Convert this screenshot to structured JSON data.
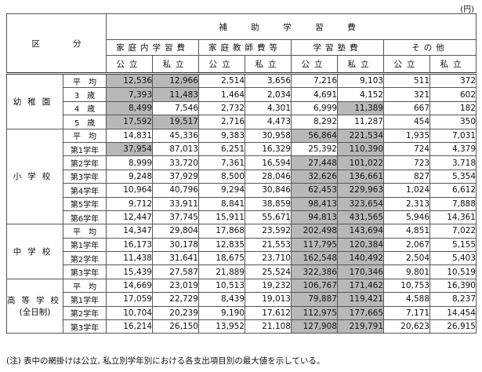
{
  "unit": "(円)",
  "header": {
    "division": "区　　　　分",
    "main": "補　助　学　習　費",
    "groups": [
      "家庭内学習費",
      "家庭教師費等",
      "学習塾費",
      "その他"
    ],
    "sub": [
      "公立",
      "私立",
      "公立",
      "私立",
      "公立",
      "私立",
      "公立",
      "私立"
    ]
  },
  "table": {
    "sections": [
      {
        "name": "幼稚園",
        "rows": [
          {
            "label": "平　均",
            "cells": [
              "12,536",
              "12,966",
              "2,514",
              "3,656",
              "7,216",
              "9,103",
              "511",
              "372"
            ],
            "shaded": [
              0,
              1
            ]
          },
          {
            "label": "3　歳",
            "cells": [
              "7,393",
              "11,483",
              "1,464",
              "2,034",
              "4,691",
              "4,152",
              "321",
              "602"
            ],
            "shaded": [
              0,
              1
            ]
          },
          {
            "label": "4　歳",
            "cells": [
              "8,499",
              "7,546",
              "2,732",
              "4,301",
              "6,999",
              "11,389",
              "667",
              "182"
            ],
            "shaded": [
              0,
              5
            ]
          },
          {
            "label": "5　歳",
            "cells": [
              "17,592",
              "19,517",
              "2,716",
              "4,473",
              "8,292",
              "11,287",
              "454",
              "350"
            ],
            "shaded": [
              0,
              1
            ]
          }
        ]
      },
      {
        "name": "小学校",
        "rows": [
          {
            "label": "平　均",
            "cells": [
              "14,831",
              "45,336",
              "9,383",
              "30,958",
              "56,864",
              "221,534",
              "1,935",
              "7,031"
            ],
            "shaded": [
              4,
              5
            ]
          },
          {
            "label": "第1学年",
            "cells": [
              "37,954",
              "87,013",
              "6,251",
              "16,329",
              "25,392",
              "110,390",
              "724",
              "4,379"
            ],
            "shaded": [
              0,
              5
            ]
          },
          {
            "label": "第2学年",
            "cells": [
              "8,999",
              "33,720",
              "7,361",
              "16,594",
              "27,448",
              "101,022",
              "723",
              "3,718"
            ],
            "shaded": [
              4,
              5
            ]
          },
          {
            "label": "第3学年",
            "cells": [
              "9,248",
              "37,929",
              "8,500",
              "28,046",
              "32,626",
              "136,661",
              "827",
              "5,354"
            ],
            "shaded": [
              4,
              5
            ]
          },
          {
            "label": "第4学年",
            "cells": [
              "10,964",
              "40,796",
              "9,294",
              "30,846",
              "62,453",
              "229,963",
              "1,024",
              "6,612"
            ],
            "shaded": [
              4,
              5
            ]
          },
          {
            "label": "第5学年",
            "cells": [
              "9,712",
              "33,911",
              "8,841",
              "38,859",
              "98,413",
              "323,654",
              "2,313",
              "7,888"
            ],
            "shaded": [
              4,
              5
            ]
          },
          {
            "label": "第6学年",
            "cells": [
              "12,447",
              "37,745",
              "15,911",
              "55,671",
              "94,813",
              "431,565",
              "5,946",
              "14,361"
            ],
            "shaded": [
              4,
              5
            ]
          }
        ]
      },
      {
        "name": "中学校",
        "rows": [
          {
            "label": "平　均",
            "cells": [
              "14,347",
              "29,804",
              "17,868",
              "23,592",
              "202,498",
              "143,694",
              "4,851",
              "7,022"
            ],
            "shaded": [
              4,
              5
            ]
          },
          {
            "label": "第1学年",
            "cells": [
              "16,173",
              "30,178",
              "12,835",
              "21,553",
              "117,795",
              "120,384",
              "2,067",
              "5,155"
            ],
            "shaded": [
              4,
              5
            ]
          },
          {
            "label": "第2学年",
            "cells": [
              "11,438",
              "31,641",
              "18,675",
              "23,710",
              "162,548",
              "140,492",
              "2,504",
              "5,403"
            ],
            "shaded": [
              4,
              5
            ]
          },
          {
            "label": "第3学年",
            "cells": [
              "15,439",
              "27,587",
              "21,889",
              "25,524",
              "322,386",
              "170,346",
              "9,801",
              "10,519"
            ],
            "shaded": [
              4,
              5
            ]
          }
        ]
      },
      {
        "name": "高等学校",
        "subname": "(全日制)",
        "rows": [
          {
            "label": "平　均",
            "cells": [
              "14,669",
              "23,019",
              "10,513",
              "19,232",
              "106,767",
              "171,462",
              "10,753",
              "16,390"
            ],
            "shaded": [
              4,
              5
            ]
          },
          {
            "label": "第1学年",
            "cells": [
              "17,059",
              "22,729",
              "8,439",
              "19,013",
              "79,887",
              "119,421",
              "4,588",
              "8,237"
            ],
            "shaded": [
              4,
              5
            ]
          },
          {
            "label": "第2学年",
            "cells": [
              "10,704",
              "20,239",
              "9,190",
              "17,612",
              "112,975",
              "177,665",
              "7,171",
              "14,454"
            ],
            "shaded": [
              4,
              5
            ]
          },
          {
            "label": "第3学年",
            "cells": [
              "16,214",
              "26,150",
              "13,952",
              "21,108",
              "127,908",
              "219,791",
              "20,623",
              "26,915"
            ],
            "shaded": [
              4,
              5
            ]
          }
        ]
      }
    ]
  },
  "note": "(注) 表中の網掛けは公立, 私立別学年別における各支出項目別の最大値を示している。"
}
